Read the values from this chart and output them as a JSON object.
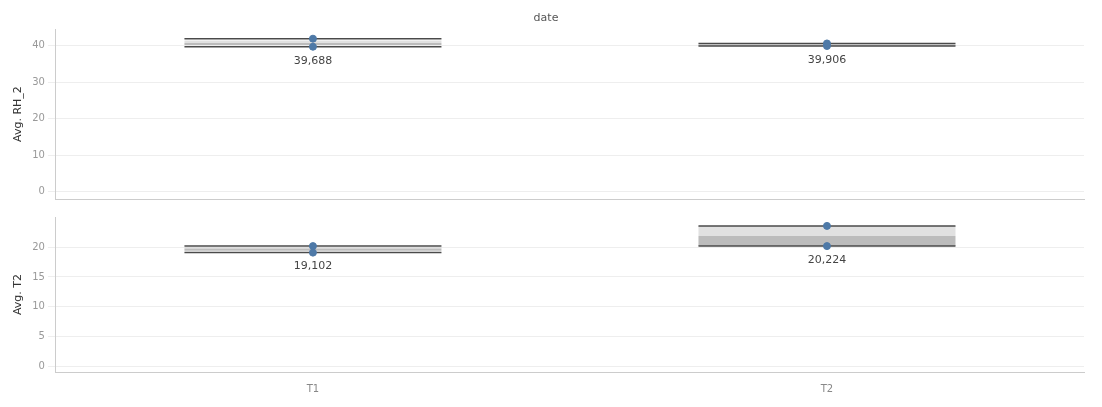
{
  "chart_data": [
    {
      "type": "box",
      "title": "date",
      "categories": [
        "T1",
        "T2"
      ],
      "ylabel": "Avg. RH_2",
      "ylim": [
        -2,
        44.5
      ],
      "yticks": [
        0,
        10,
        20,
        30,
        40
      ],
      "grid": "y",
      "tick_labels": "y",
      "legend": false,
      "marker": "circle",
      "series": [
        {
          "type": "box",
          "color": "#bcbcbc",
          "boxes": [
            {
              "low": 39.688,
              "q1": 40.2,
              "median": 40.75,
              "q3": 41.4,
              "high": 41.9
            },
            {
              "low": 39.906,
              "q1": 40.0,
              "median": 40.2,
              "q3": 40.4,
              "high": 40.6
            }
          ]
        },
        {
          "type": "scatter",
          "color": "#4e79a7",
          "x": [
            "T1",
            "T1",
            "T2",
            "T2"
          ],
          "values": [
            39.7,
            41.9,
            39.9,
            40.6
          ]
        }
      ],
      "annotations": [
        {
          "text": "39,688",
          "x": "T1",
          "y": 39.688
        },
        {
          "text": "39,906",
          "x": "T2",
          "y": 39.906
        }
      ]
    },
    {
      "type": "box",
      "categories": [
        "T1",
        "T2"
      ],
      "ylabel": "Avg. T2",
      "ylim": [
        -1,
        25.1
      ],
      "yticks": [
        0,
        5,
        10,
        15,
        20
      ],
      "grid": "y",
      "legend": false,
      "marker": "circle",
      "series": [
        {
          "type": "box",
          "color": "#bcbcbc",
          "boxes": [
            {
              "low": 19.102,
              "q1": 19.4,
              "median": 19.8,
              "q3": 20.0,
              "high": 20.2
            },
            {
              "low": 20.224,
              "q1": 20.224,
              "median": 21.9,
              "q3": 23.6,
              "high": 23.6
            }
          ]
        },
        {
          "type": "scatter",
          "color": "#4e79a7",
          "x": [
            "T1",
            "T1",
            "T2",
            "T2"
          ],
          "values": [
            19.1,
            20.2,
            20.2,
            23.6
          ]
        }
      ],
      "annotations": [
        {
          "text": "19,102",
          "x": "T1",
          "y": 19.102
        },
        {
          "text": "20,224",
          "x": "T2",
          "y": 20.224
        }
      ]
    }
  ]
}
